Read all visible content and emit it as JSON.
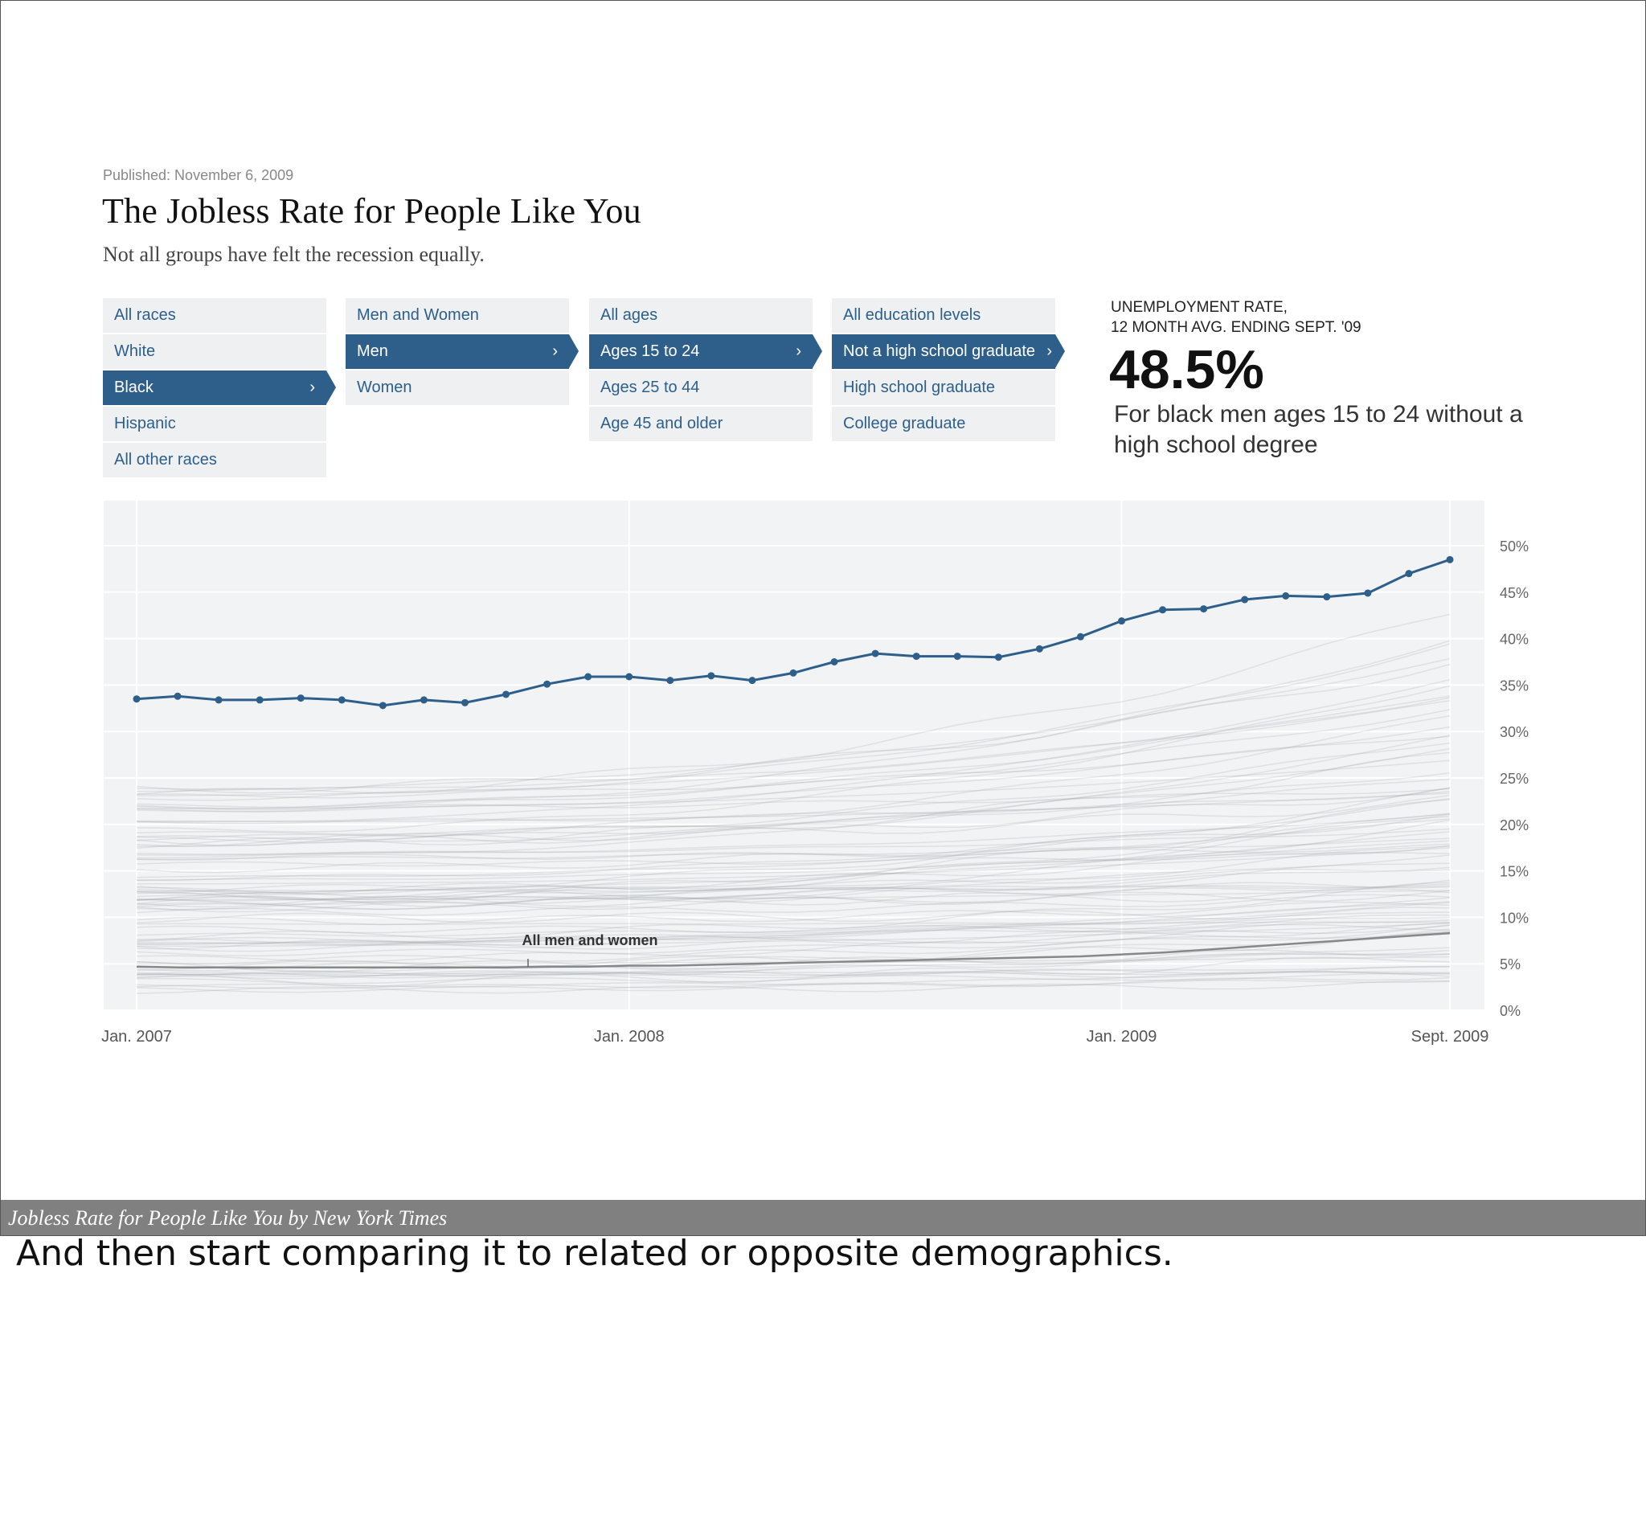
{
  "published": "Published: November 6, 2009",
  "title": "The Jobless Rate for People Like You",
  "subtitle": "Not all groups have felt the recession equally.",
  "filters": {
    "race": [
      {
        "label": "All races",
        "selected": false
      },
      {
        "label": "White",
        "selected": false
      },
      {
        "label": "Black",
        "selected": true
      },
      {
        "label": "Hispanic",
        "selected": false
      },
      {
        "label": "All other races",
        "selected": false
      }
    ],
    "sex": [
      {
        "label": "Men and Women",
        "selected": false
      },
      {
        "label": "Men",
        "selected": true
      },
      {
        "label": "Women",
        "selected": false
      }
    ],
    "age": [
      {
        "label": "All ages",
        "selected": false
      },
      {
        "label": "Ages 15 to 24",
        "selected": true
      },
      {
        "label": "Ages 25 to 44",
        "selected": false
      },
      {
        "label": "Age 45 and older",
        "selected": false
      }
    ],
    "education": [
      {
        "label": "All education levels",
        "selected": false
      },
      {
        "label": "Not a high school graduate",
        "selected": true
      },
      {
        "label": "High school graduate",
        "selected": false
      },
      {
        "label": "College graduate",
        "selected": false
      }
    ],
    "chevron_glyph": "›"
  },
  "rate": {
    "label_line1": "UNEMPLOYMENT RATE,",
    "label_line2": "12 MONTH AVG. ENDING SEPT. '09",
    "value": "48.5%",
    "description": "For black men ages 15 to 24 without a high school degree"
  },
  "chart_data": {
    "type": "line",
    "x_tick_labels": [
      "Jan. 2007",
      "Jan. 2008",
      "Jan. 2009",
      "Sept. 2009"
    ],
    "y_tick_labels": [
      "0%",
      "5%",
      "10%",
      "15%",
      "20%",
      "25%",
      "30%",
      "35%",
      "40%",
      "45%",
      "50%"
    ],
    "ylim": [
      0,
      50
    ],
    "series": [
      {
        "values": [
          33.5,
          33.8,
          33.4,
          33.4,
          33.6,
          33.4,
          32.8,
          33.4,
          33.1,
          34.0,
          35.1,
          35.9,
          35.9,
          35.5,
          36.0,
          35.5,
          36.3,
          37.5,
          38.4,
          38.1,
          38.1,
          38.0,
          38.9,
          40.2,
          41.9,
          43.1,
          43.2,
          44.2,
          44.6,
          44.5,
          44.9,
          47.0,
          48.5
        ],
        "color": "#2e5f8b"
      },
      {
        "name": "All men and women",
        "values": [
          4.7,
          4.6,
          4.6,
          4.6,
          4.6,
          4.6,
          4.6,
          4.6,
          4.6,
          4.6,
          4.7,
          4.7,
          4.8,
          4.8,
          4.9,
          5.0,
          5.1,
          5.2,
          5.3,
          5.4,
          5.5,
          5.6,
          5.7,
          5.8,
          6.0,
          6.2,
          6.5,
          6.8,
          7.1,
          7.4,
          7.7,
          8.0,
          8.3
        ],
        "color": "#888888"
      }
    ],
    "annotations": [
      {
        "text": "All men and women"
      }
    ],
    "grid": true,
    "background_lines": "many faint gray lines for other demographic groups"
  },
  "caption": "Jobless Rate for People Like You by New York Times",
  "slide_note": "And then start comparing it to related or opposite demographics."
}
